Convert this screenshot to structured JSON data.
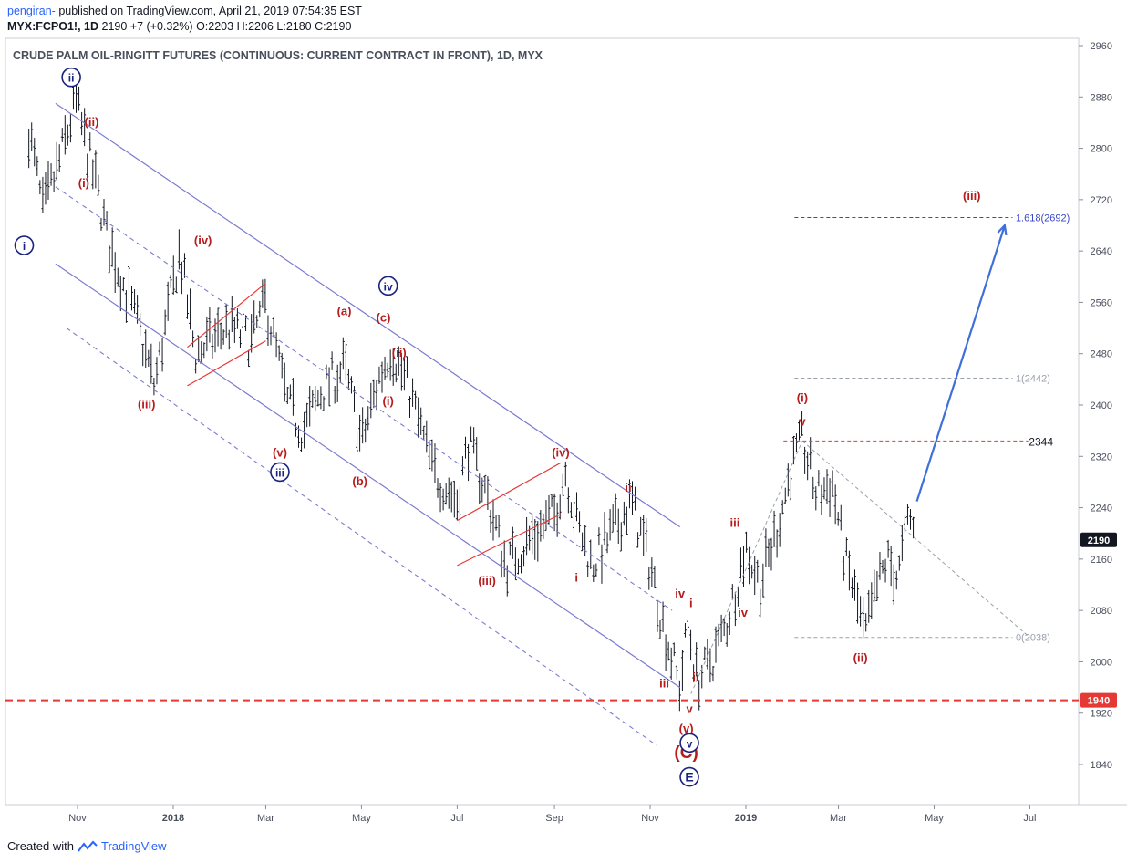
{
  "header": {
    "user": "pengiran-",
    "published": "published on TradingView.com, April 21, 2019 07:54:35 EST",
    "symbol": "MYX:FCPO1!, 1D",
    "last": "2190",
    "change": "+7 (+0.32%)",
    "o_label": "O:",
    "o": "2203",
    "h_label": "H:",
    "h": "2206",
    "l_label": "L:",
    "l": "2180",
    "c_label": "C:",
    "c": "2190"
  },
  "footer": {
    "created": "Created with",
    "brand": "TradingView"
  },
  "colors": {
    "wave_red": "#b71c1c",
    "wave_blue": "#1a237e",
    "channel": "#7b7bd1",
    "level_red": "#e53935",
    "target_blue": "#3f6fd8",
    "bars": "#131722",
    "last_price_bg": "#131722"
  },
  "chart_data": {
    "type": "ohlc-bar",
    "title": "CRUDE PALM OIL-RINGITT FUTURES (CONTINUOUS: CURRENT CONTRACT IN FRONT), 1D, MYX",
    "ylim": [
      1770,
      2980
    ],
    "y_ticks": [
      1840,
      1920,
      2000,
      2080,
      2160,
      2240,
      2320,
      2400,
      2480,
      2560,
      2640,
      2720,
      2800,
      2880,
      2960
    ],
    "x_ticks": [
      "Nov",
      "2018",
      "Mar",
      "May",
      "Jul",
      "Sep",
      "Nov",
      "2019",
      "Mar",
      "May",
      "Jul"
    ],
    "last_price": 2190,
    "support_level": 1940,
    "resistance_level": 2344,
    "fib_levels": [
      {
        "label": "1.618(2692)",
        "value": 2692
      },
      {
        "label": "1(2442)",
        "value": 2442
      },
      {
        "label": "0(2038)",
        "value": 2038
      }
    ],
    "price_path": [
      [
        "2017-10-01",
        2830
      ],
      [
        "2017-10-10",
        2700
      ],
      [
        "2017-10-18",
        2760
      ],
      [
        "2017-10-31",
        2870
      ],
      [
        "2017-11-08",
        2790
      ],
      [
        "2017-11-15",
        2720
      ],
      [
        "2017-11-20",
        2660
      ],
      [
        "2017-12-10",
        2520
      ],
      [
        "2017-12-20",
        2430
      ],
      [
        "2017-12-30",
        2560
      ],
      [
        "2018-01-05",
        2640
      ],
      [
        "2018-01-15",
        2480
      ],
      [
        "2018-02-05",
        2520
      ],
      [
        "2018-02-20",
        2500
      ],
      [
        "2018-03-01",
        2560
      ],
      [
        "2018-03-15",
        2400
      ],
      [
        "2018-03-25",
        2360
      ],
      [
        "2018-04-05",
        2420
      ],
      [
        "2018-04-20",
        2460
      ],
      [
        "2018-05-01",
        2340
      ],
      [
        "2018-05-12",
        2440
      ],
      [
        "2018-05-20",
        2490
      ],
      [
        "2018-06-01",
        2420
      ],
      [
        "2018-06-15",
        2300
      ],
      [
        "2018-07-01",
        2250
      ],
      [
        "2018-07-08",
        2340
      ],
      [
        "2018-07-20",
        2260
      ],
      [
        "2018-08-01",
        2150
      ],
      [
        "2018-08-20",
        2200
      ],
      [
        "2018-09-01",
        2230
      ],
      [
        "2018-09-08",
        2300
      ],
      [
        "2018-09-15",
        2220
      ],
      [
        "2018-09-25",
        2150
      ],
      [
        "2018-10-05",
        2190
      ],
      [
        "2018-10-20",
        2250
      ],
      [
        "2018-11-01",
        2150
      ],
      [
        "2018-11-10",
        2050
      ],
      [
        "2018-11-20",
        1960
      ],
      [
        "2018-11-25",
        2060
      ],
      [
        "2018-12-01",
        1970
      ],
      [
        "2018-12-10",
        2000
      ],
      [
        "2018-12-20",
        2060
      ],
      [
        "2019-01-01",
        2180
      ],
      [
        "2019-01-10",
        2120
      ],
      [
        "2019-01-20",
        2200
      ],
      [
        "2019-01-30",
        2300
      ],
      [
        "2019-02-06",
        2344
      ],
      [
        "2019-02-15",
        2260
      ],
      [
        "2019-02-25",
        2280
      ],
      [
        "2019-03-05",
        2160
      ],
      [
        "2019-03-12",
        2100
      ],
      [
        "2019-03-18",
        2038
      ],
      [
        "2019-03-25",
        2110
      ],
      [
        "2019-04-01",
        2160
      ],
      [
        "2019-04-08",
        2130
      ],
      [
        "2019-04-15",
        2230
      ],
      [
        "2019-04-19",
        2190
      ]
    ],
    "wave_labels_red": [
      "(ii)",
      "(i)",
      "(iv)",
      "(iii)",
      "(v)",
      "(a)",
      "(c)",
      "(ii)",
      "(i)",
      "(b)",
      "(iv)",
      "(iii)",
      "ii",
      "i",
      "iii",
      "iv",
      "iv",
      "i",
      "ii",
      "iii",
      "v",
      "(v)",
      "(C)",
      "(i)",
      "v",
      "(ii)",
      "(iii)"
    ],
    "wave_labels_blue": [
      "ii",
      "i",
      "iii",
      "iv",
      "v",
      "E"
    ]
  }
}
